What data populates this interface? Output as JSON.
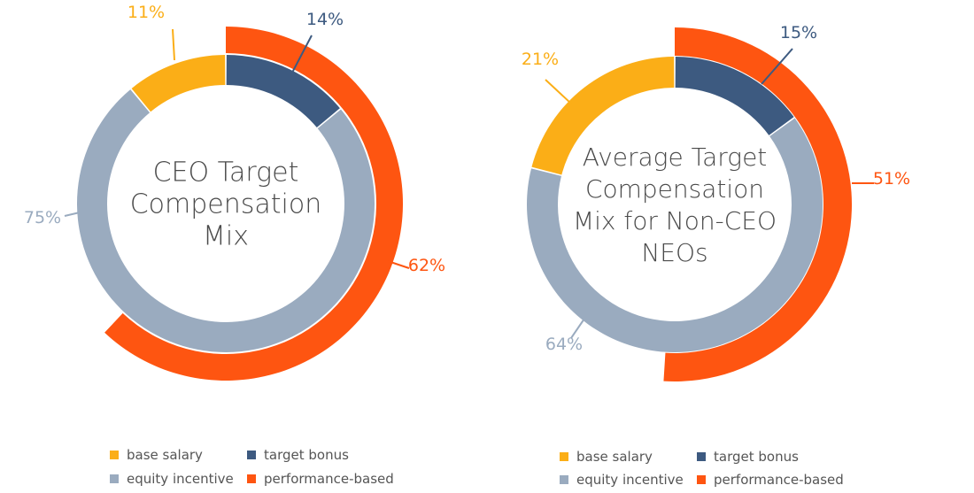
{
  "colors": {
    "base_salary": "#fbae17",
    "target_bonus": "#3d5a80",
    "equity_incentive": "#9aabbf",
    "performance_based": "#fe5511"
  },
  "chart_data": [
    {
      "type": "pie",
      "title_lines": [
        "CEO Target",
        "Compensation",
        "Mix"
      ],
      "inner_ring": [
        {
          "name": "base salary",
          "value": 11,
          "label": "11%",
          "color_key": "base_salary"
        },
        {
          "name": "target bonus",
          "value": 14,
          "label": "14%",
          "color_key": "target_bonus"
        },
        {
          "name": "equity incentive",
          "value": 75,
          "label": "75%",
          "color_key": "equity_incentive"
        }
      ],
      "outer_ring": {
        "name": "performance-based",
        "value": 62,
        "label": "62%",
        "color_key": "performance_based"
      },
      "legend": [
        "base salary",
        "target bonus",
        "equity incentive",
        "performance-based"
      ]
    },
    {
      "type": "pie",
      "title_lines": [
        "Average Target",
        "Compensation",
        "Mix for Non-CEO",
        "NEOs"
      ],
      "inner_ring": [
        {
          "name": "base salary",
          "value": 21,
          "label": "21%",
          "color_key": "base_salary"
        },
        {
          "name": "target bonus",
          "value": 15,
          "label": "15%",
          "color_key": "target_bonus"
        },
        {
          "name": "equity incentive",
          "value": 64,
          "label": "64%",
          "color_key": "equity_incentive"
        }
      ],
      "outer_ring": {
        "name": "performance-based",
        "value": 51,
        "label": "51%",
        "color_key": "performance_based"
      },
      "legend": [
        "base salary",
        "target bonus",
        "equity incentive",
        "performance-based"
      ]
    }
  ]
}
